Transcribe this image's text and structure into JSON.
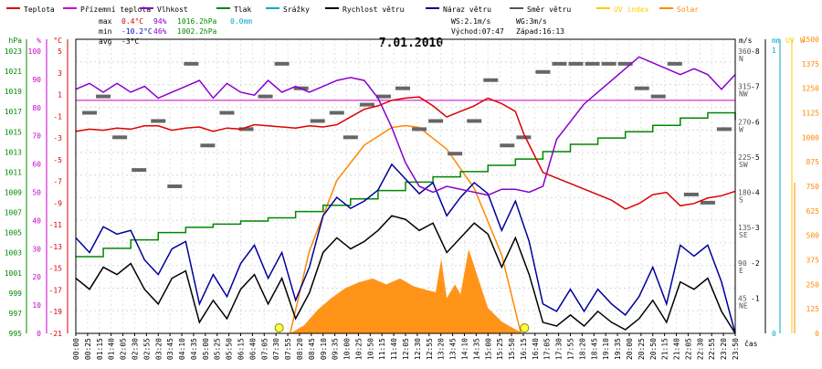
{
  "chart_data": {
    "type": "line",
    "title": "7.01.2010",
    "xlabel": "čas",
    "legend": [
      {
        "label": "Teplota",
        "color": "#dd0000"
      },
      {
        "label": "Přízemní teplota",
        "color": "#cc00cc"
      },
      {
        "label": "Vlhkost",
        "color": "#8800cc"
      },
      {
        "label": "Tlak",
        "color": "#008800"
      },
      {
        "label": "Srážky",
        "color": "#00aacc"
      },
      {
        "label": "Rychlost větru",
        "color": "#000000"
      },
      {
        "label": "Náraz větru",
        "color": "#000099"
      },
      {
        "label": "Směr větru",
        "color": "#555555"
      },
      {
        "label": "UV index",
        "color": "#ffcc00"
      },
      {
        "label": "Solar",
        "color": "#ff8800"
      }
    ],
    "stats": {
      "max": {
        "label": "max",
        "temp": "0.4°C",
        "hum": "94%",
        "press": "1016.2hPa",
        "rain": "0.0mm"
      },
      "min": {
        "label": "min",
        "temp": "-10.2°C",
        "hum": "46%",
        "press": "1002.2hPa"
      },
      "avg": {
        "label": "avg",
        "temp": "-3°C"
      },
      "ws": "WS:2.1m/s",
      "wg": "WG:3m/s",
      "sunrise": "Východ:07:47",
      "sunset": "Západ:16:13"
    },
    "axes": {
      "pressure": {
        "unit": "hPa",
        "ticks": [
          "1023",
          "1021",
          "1019",
          "1017",
          "1015",
          "1013",
          "1011",
          "1009",
          "1007",
          "1005",
          "1003",
          "1001",
          "999",
          "997",
          "995"
        ]
      },
      "humidity": {
        "unit": "%",
        "ticks": [
          "100",
          "90",
          "80",
          "70",
          "60",
          "50",
          "40",
          "30",
          "20",
          "10",
          "0"
        ]
      },
      "temperature": {
        "unit": "°C",
        "ticks": [
          "5",
          "3",
          "1",
          "-1",
          "-3",
          "-5",
          "-7",
          "-9",
          "-11",
          "-13",
          "-15",
          "-17",
          "-19",
          "-21"
        ]
      },
      "direction": {
        "ticks": [
          "360",
          "315",
          "270",
          "225",
          "180",
          "135",
          "90",
          "45",
          "0"
        ],
        "labels": [
          "N",
          "NW",
          "W",
          "SW",
          "S",
          "SE",
          "E",
          "NE",
          ""
        ]
      },
      "speed": {
        "unit": "m/s",
        "ticks": [
          "8",
          "7",
          "6",
          "5",
          "4",
          "3",
          "2",
          "1"
        ]
      },
      "rain": {
        "unit": "mm",
        "ticks": [
          "1",
          "0"
        ]
      },
      "uv": {
        "unit": "UV",
        "ticks": [
          "0"
        ]
      },
      "solar": {
        "unit": "W",
        "ticks": [
          "1500",
          "1375",
          "1250",
          "1125",
          "1000",
          "875",
          "750",
          "625",
          "500",
          "375",
          "250",
          "125",
          "0"
        ]
      }
    },
    "x_ticks": [
      "00:00",
      "00:25",
      "01:15",
      "01:40",
      "02:05",
      "02:30",
      "02:55",
      "03:20",
      "03:45",
      "04:10",
      "04:35",
      "05:00",
      "05:25",
      "05:50",
      "06:15",
      "06:40",
      "07:05",
      "07:30",
      "07:55",
      "08:20",
      "08:45",
      "09:10",
      "09:35",
      "10:00",
      "10:25",
      "10:50",
      "11:15",
      "11:40",
      "12:05",
      "12:30",
      "12:55",
      "13:20",
      "13:45",
      "14:10",
      "14:35",
      "15:00",
      "15:25",
      "15:50",
      "16:15",
      "16:40",
      "17:05",
      "17:30",
      "17:55",
      "18:20",
      "18:45",
      "19:10",
      "19:35",
      "20:00",
      "20:25",
      "20:50",
      "21:15",
      "21:40",
      "22:05",
      "22:30",
      "22:55",
      "23:20",
      "23:50"
    ],
    "ranges": {
      "hours": [
        0,
        24
      ],
      "temperature": [
        -21,
        5.5
      ],
      "humidity": [
        0,
        100
      ],
      "pressure": [
        995,
        1023
      ],
      "wind_speed": [
        0,
        8
      ],
      "wind_dir": [
        0,
        360
      ],
      "solar": [
        0,
        1500
      ]
    },
    "series": {
      "temperature": {
        "x": [
          0,
          0.5,
          1,
          1.5,
          2,
          2.5,
          3,
          3.5,
          4,
          4.5,
          5,
          5.5,
          6,
          6.5,
          7,
          7.5,
          8,
          8.5,
          9,
          9.5,
          10,
          10.5,
          11,
          11.5,
          12,
          12.5,
          13,
          13.5,
          14,
          14.5,
          15,
          15.5,
          16,
          16.3,
          16.6,
          17,
          17.5,
          18,
          18.5,
          19,
          19.5,
          20,
          20.5,
          21,
          21.5,
          22,
          22.5,
          23,
          23.5,
          24
        ],
        "y": [
          -2.8,
          -2.6,
          -2.7,
          -2.5,
          -2.6,
          -2.3,
          -2.3,
          -2.7,
          -2.5,
          -2.4,
          -2.8,
          -2.5,
          -2.6,
          -2.2,
          -2.3,
          -2.4,
          -2.5,
          -2.3,
          -2.4,
          -2.2,
          -1.5,
          -0.8,
          -0.5,
          0,
          0.2,
          0.3,
          -0.5,
          -1.5,
          -1,
          -0.5,
          0.2,
          -0.3,
          -1,
          -3,
          -4.5,
          -6.5,
          -7,
          -7.5,
          -8,
          -8.5,
          -9,
          -9.8,
          -9.3,
          -8.5,
          -8.3,
          -9.5,
          -9.3,
          -8.8,
          -8.6,
          -8.2
        ]
      },
      "humidity": {
        "x": [
          0,
          0.5,
          1,
          1.5,
          2,
          2.5,
          3,
          3.5,
          4,
          4.5,
          5,
          5.5,
          6,
          6.5,
          7,
          7.5,
          8,
          8.5,
          9,
          9.5,
          10,
          10.5,
          11,
          11.5,
          12,
          12.5,
          13,
          13.5,
          14,
          14.5,
          15,
          15.5,
          16,
          16.5,
          17,
          17.5,
          18,
          18.5,
          19,
          19.5,
          20,
          20.5,
          21,
          21.5,
          22,
          22.5,
          23,
          23.5,
          24
        ],
        "y": [
          83,
          85,
          82,
          85,
          82,
          84,
          80,
          82,
          84,
          86,
          80,
          85,
          82,
          81,
          86,
          82,
          84,
          82,
          84,
          86,
          87,
          86,
          80,
          70,
          58,
          50,
          48,
          50,
          49,
          48,
          47,
          49,
          49,
          48,
          50,
          66,
          72,
          78,
          82,
          86,
          90,
          94,
          92,
          90,
          88,
          90,
          88,
          83,
          88
        ]
      },
      "ground_temperature": {
        "x": [
          0,
          24
        ],
        "y": [
          0,
          0
        ]
      },
      "pressure": {
        "x": [
          0,
          1,
          2,
          3,
          4,
          5,
          6,
          7,
          8,
          9,
          10,
          11,
          12,
          13,
          14,
          15,
          16,
          17,
          18,
          19,
          20,
          21,
          22,
          23,
          24
        ],
        "y": [
          1002.3,
          1003.1,
          1003.9,
          1004.6,
          1005.1,
          1005.4,
          1005.7,
          1006,
          1006.6,
          1007.2,
          1007.8,
          1008.6,
          1009.4,
          1009.9,
          1010.4,
          1011,
          1011.6,
          1012.3,
          1013,
          1013.6,
          1014.2,
          1014.8,
          1015.5,
          1016,
          1015.3
        ]
      },
      "wind_speed": {
        "x": [
          0,
          0.5,
          1,
          1.5,
          2,
          2.5,
          3,
          3.5,
          4,
          4.5,
          5,
          5.5,
          6,
          6.5,
          7,
          7.5,
          8,
          8.5,
          9,
          9.5,
          10,
          10.5,
          11,
          11.5,
          12,
          12.5,
          13,
          13.5,
          14,
          14.5,
          15,
          15.5,
          16,
          16.5,
          17,
          17.5,
          18,
          18.5,
          19,
          19.5,
          20,
          20.5,
          21,
          21.5,
          22,
          22.5,
          23,
          23.5,
          24
        ],
        "y": [
          1.5,
          1.2,
          1.8,
          1.6,
          1.9,
          1.2,
          0.8,
          1.5,
          1.7,
          0.3,
          0.9,
          0.4,
          1.2,
          1.6,
          0.8,
          1.5,
          0.4,
          1.1,
          2.2,
          2.6,
          2.3,
          2.5,
          2.8,
          3.2,
          3.1,
          2.8,
          3,
          2.2,
          2.6,
          3,
          2.7,
          1.8,
          2.6,
          1.6,
          0.3,
          0.2,
          0.5,
          0.2,
          0.6,
          0.3,
          0.1,
          0.4,
          0.9,
          0.3,
          1.4,
          1.2,
          1.5,
          0.6,
          0
        ]
      },
      "wind_gust": {
        "x": [
          0,
          0.5,
          1,
          1.5,
          2,
          2.5,
          3,
          3.5,
          4,
          4.5,
          5,
          5.5,
          6,
          6.5,
          7,
          7.5,
          8,
          8.5,
          9,
          9.5,
          10,
          10.5,
          11,
          11.5,
          12,
          12.5,
          13,
          13.5,
          14,
          14.5,
          15,
          15.5,
          16,
          16.5,
          17,
          17.5,
          18,
          18.5,
          19,
          19.5,
          20,
          20.5,
          21,
          21.5,
          22,
          22.5,
          23,
          23.5,
          24
        ],
        "y": [
          2.6,
          2.2,
          2.9,
          2.7,
          2.8,
          2,
          1.6,
          2.3,
          2.5,
          0.8,
          1.6,
          1,
          1.9,
          2.4,
          1.5,
          2.2,
          0.9,
          1.8,
          3.2,
          3.7,
          3.4,
          3.6,
          3.9,
          4.6,
          4.2,
          3.8,
          4.1,
          3.2,
          3.7,
          4.1,
          3.8,
          2.8,
          3.6,
          2.5,
          0.8,
          0.6,
          1.2,
          0.6,
          1.2,
          0.8,
          0.5,
          1,
          1.8,
          0.8,
          2.4,
          2.1,
          2.4,
          1.4,
          0
        ]
      },
      "wind_direction": {
        "x": [
          0.5,
          1,
          1.6,
          2.3,
          3,
          3.6,
          4.2,
          4.8,
          5.5,
          6.2,
          6.9,
          7.5,
          8.2,
          8.8,
          9.5,
          10,
          10.6,
          11.2,
          11.9,
          12.5,
          13.1,
          13.8,
          14.5,
          15.1,
          15.7,
          16.3,
          17,
          17.6,
          18.2,
          18.8,
          19.4,
          20,
          20.6,
          21.2,
          21.8,
          22.4,
          23,
          23.6
        ],
        "y": [
          270,
          290,
          240,
          200,
          260,
          180,
          330,
          230,
          270,
          250,
          290,
          330,
          300,
          260,
          270,
          240,
          280,
          290,
          300,
          250,
          260,
          220,
          260,
          310,
          230,
          240,
          320,
          330,
          330,
          330,
          330,
          330,
          300,
          290,
          330,
          170,
          160,
          250
        ]
      },
      "solar": {
        "x": [
          7.8,
          8.3,
          8.8,
          9.3,
          9.8,
          10.3,
          10.8,
          11.3,
          11.8,
          12.3,
          12.8,
          13.1,
          13.3,
          13.5,
          13.8,
          14,
          14.3,
          14.6,
          15,
          15.5,
          16,
          16.3
        ],
        "y": [
          0,
          40,
          120,
          180,
          230,
          260,
          280,
          250,
          280,
          240,
          220,
          210,
          380,
          180,
          250,
          200,
          430,
          300,
          130,
          60,
          20,
          0
        ]
      },
      "solar_theoretical": {
        "x": [
          7.8,
          8.5,
          9.5,
          10.5,
          11.5,
          12.0,
          12.5,
          13.5,
          14.5,
          15.5,
          16.2
        ],
        "y": [
          0,
          420,
          780,
          960,
          1050,
          1060,
          1050,
          940,
          740,
          400,
          0
        ]
      }
    }
  }
}
